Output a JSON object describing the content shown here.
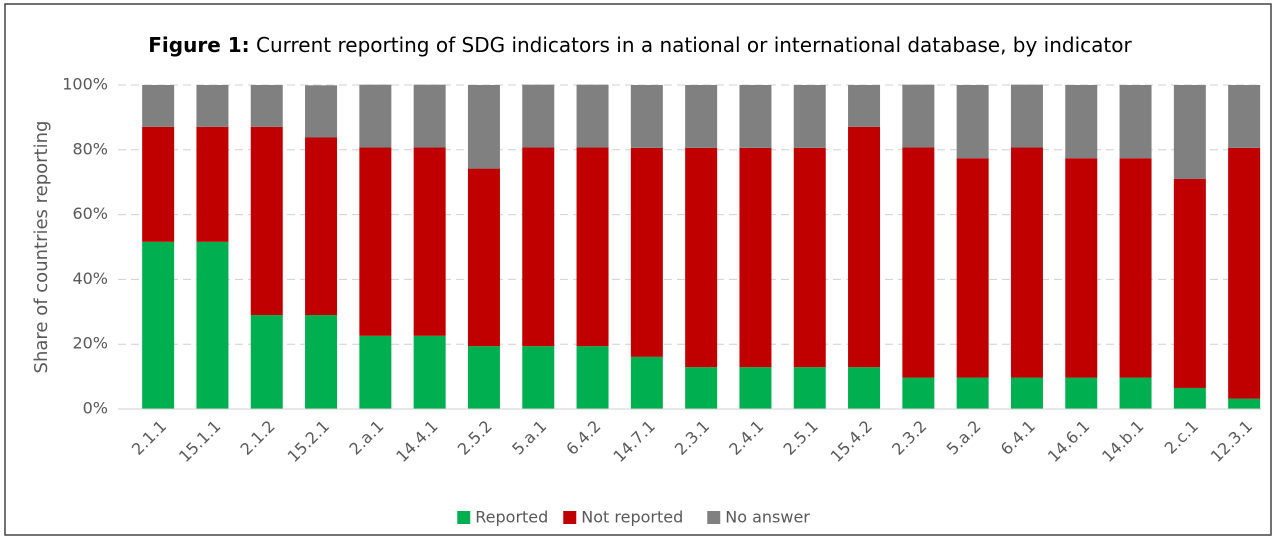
{
  "chart_data": {
    "type": "stacked_bar",
    "title_prefix": "Figure 1:",
    "title": "Current reporting of SDG indicators in a national or international database, by indicator",
    "y_label": "Share of countries reporting",
    "categories": [
      "2.1.1",
      "15.1.1",
      "2.1.2",
      "15.2.1",
      "2.a.1",
      "14.4.1",
      "2.5.2",
      "5.a.1",
      "6.4.2",
      "14.7.1",
      "2.3.1",
      "2.4.1",
      "2.5.1",
      "15.4.2",
      "2.3.2",
      "5.a.2",
      "6.4.1",
      "14.6.1",
      "14.b.1",
      "2.c.1",
      "12.3.1"
    ],
    "series": [
      {
        "name": "Reported",
        "color": "#00b050",
        "values": [
          51.6,
          51.6,
          29.0,
          29.0,
          22.6,
          22.6,
          19.4,
          19.4,
          19.4,
          16.1,
          12.9,
          12.9,
          12.9,
          12.9,
          9.7,
          9.7,
          9.7,
          9.7,
          9.7,
          6.5,
          3.2
        ]
      },
      {
        "name": "Not reported",
        "color": "#c00000",
        "values": [
          35.5,
          35.5,
          58.1,
          54.8,
          58.1,
          58.1,
          54.8,
          61.3,
          61.3,
          64.5,
          67.7,
          67.7,
          67.7,
          74.2,
          71.0,
          67.7,
          71.0,
          67.7,
          67.7,
          64.5,
          77.4
        ]
      },
      {
        "name": "No answer",
        "color": "#808080",
        "values": [
          12.9,
          12.9,
          12.9,
          16.1,
          19.4,
          19.4,
          25.8,
          19.4,
          19.4,
          19.4,
          19.4,
          19.4,
          19.4,
          12.9,
          19.4,
          22.6,
          19.4,
          22.6,
          22.6,
          29.0,
          19.4
        ]
      }
    ],
    "ylim": [
      0,
      100
    ],
    "yticks": [
      {
        "value": 0,
        "label": "0%"
      },
      {
        "value": 20,
        "label": "20%"
      },
      {
        "value": 40,
        "label": "40%"
      },
      {
        "value": 60,
        "label": "60%"
      },
      {
        "value": 80,
        "label": "80%"
      },
      {
        "value": 100,
        "label": "100%"
      }
    ],
    "grid": true,
    "legend": "bottom"
  }
}
